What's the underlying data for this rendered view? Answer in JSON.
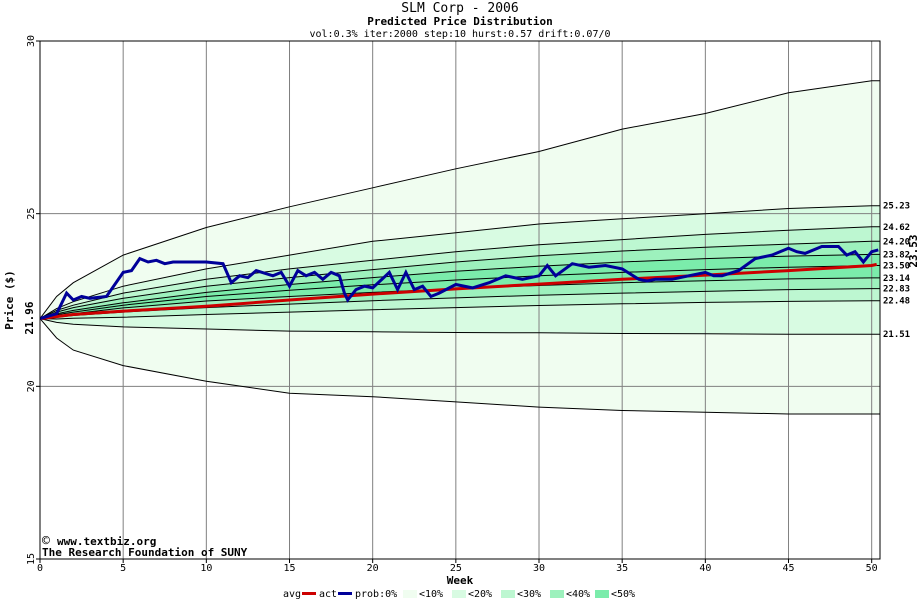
{
  "chart_data": {
    "type": "area",
    "title": "SLM Corp - 2006",
    "subtitle": "Predicted Price Distribution",
    "params": "vol:0.3% iter:2000 step:10 hurst:0.57 drift:0.07/0",
    "xlabel": "Week",
    "ylabel": "Price ($)",
    "xlim": [
      0,
      50.5
    ],
    "ylim": [
      15,
      30
    ],
    "x_ticks": [
      "0",
      "5",
      "10",
      "15",
      "20",
      "25",
      "30",
      "35",
      "40",
      "45",
      "50"
    ],
    "y_ticks": [
      "15",
      "20",
      "25",
      "30"
    ],
    "start_price_label": "21.96",
    "end_price_label": "23.53",
    "right_labels": [
      "25.23",
      "24.62",
      "24.20",
      "23.82",
      "23.50",
      "23.14",
      "22.83",
      "22.48",
      "21.51"
    ],
    "bands": {
      "weeks": [
        0,
        1,
        2,
        5,
        10,
        15,
        20,
        25,
        30,
        35,
        40,
        45,
        50,
        50.5
      ],
      "outer_upper": [
        21.96,
        22.6,
        23.0,
        23.8,
        24.6,
        25.2,
        25.75,
        26.3,
        26.8,
        27.45,
        27.9,
        28.5,
        28.85,
        28.85
      ],
      "outer_lower": [
        21.96,
        21.4,
        21.05,
        20.6,
        20.15,
        19.8,
        19.7,
        19.55,
        19.4,
        19.3,
        19.25,
        19.2,
        19.2,
        19.2
      ],
      "p10_upper": [
        21.96,
        22.25,
        22.45,
        22.9,
        23.4,
        23.8,
        24.2,
        24.45,
        24.7,
        24.85,
        25.0,
        25.15,
        25.23,
        25.23
      ],
      "p10_lower": [
        21.96,
        21.85,
        21.8,
        21.72,
        21.66,
        21.6,
        21.58,
        21.56,
        21.55,
        21.53,
        21.52,
        21.51,
        21.51,
        21.51
      ],
      "p20_upper": [
        21.96,
        22.2,
        22.35,
        22.7,
        23.1,
        23.4,
        23.65,
        23.9,
        24.1,
        24.25,
        24.4,
        24.52,
        24.62,
        24.62
      ],
      "p20_lower": [
        21.96,
        21.95,
        21.97,
        22.0,
        22.08,
        22.15,
        22.22,
        22.28,
        22.34,
        22.39,
        22.43,
        22.46,
        22.48,
        22.48
      ],
      "p30_upper": [
        21.96,
        22.15,
        22.28,
        22.55,
        22.9,
        23.15,
        23.38,
        23.6,
        23.78,
        23.92,
        24.03,
        24.12,
        24.2,
        24.2
      ],
      "p30_lower": [
        21.96,
        22.0,
        22.05,
        22.15,
        22.28,
        22.38,
        22.48,
        22.56,
        22.64,
        22.7,
        22.75,
        22.8,
        22.83,
        22.83
      ],
      "p40_upper": [
        21.96,
        22.1,
        22.2,
        22.42,
        22.72,
        22.95,
        23.15,
        23.33,
        23.48,
        23.6,
        23.7,
        23.77,
        23.82,
        23.82
      ],
      "p40_lower": [
        21.96,
        22.03,
        22.1,
        22.27,
        22.47,
        22.6,
        22.72,
        22.83,
        22.92,
        23.0,
        23.06,
        23.11,
        23.14,
        23.14
      ],
      "p50_center": [
        21.96,
        22.07,
        22.15,
        22.35,
        22.6,
        22.78,
        22.94,
        23.08,
        23.2,
        23.3,
        23.38,
        23.45,
        23.5,
        23.5
      ]
    },
    "avg_line": {
      "x": [
        0,
        2,
        5,
        10,
        15,
        20,
        25,
        30,
        35,
        40,
        45,
        50,
        50.3
      ],
      "y": [
        21.96,
        22.08,
        22.18,
        22.32,
        22.5,
        22.67,
        22.82,
        22.96,
        23.1,
        23.22,
        23.35,
        23.5,
        23.53
      ]
    },
    "actual_line": {
      "x": [
        0,
        1,
        1.6,
        2,
        2.5,
        3,
        4,
        5,
        5.5,
        6,
        6.5,
        7,
        7.5,
        8,
        9,
        10,
        11,
        11.5,
        12,
        12.5,
        13,
        14,
        14.5,
        15,
        15.5,
        16,
        16.5,
        17,
        17.5,
        18,
        18.3,
        18.5,
        19,
        19.5,
        20,
        21,
        21.5,
        22,
        22.5,
        23,
        23.5,
        24,
        25,
        26,
        27,
        28,
        29,
        30,
        30.5,
        31,
        32,
        33,
        34,
        35,
        36,
        36.5,
        37,
        38,
        39,
        40,
        40.5,
        41,
        42,
        43,
        44,
        45,
        45.5,
        46,
        47,
        48,
        48.5,
        49,
        49.5,
        50,
        50.4
      ],
      "y": [
        21.96,
        22.1,
        22.7,
        22.5,
        22.6,
        22.55,
        22.6,
        23.3,
        23.35,
        23.7,
        23.6,
        23.65,
        23.55,
        23.6,
        23.6,
        23.6,
        23.55,
        23.0,
        23.2,
        23.15,
        23.35,
        23.2,
        23.3,
        22.9,
        23.35,
        23.2,
        23.3,
        23.1,
        23.3,
        23.2,
        22.7,
        22.5,
        22.8,
        22.9,
        22.85,
        23.3,
        22.8,
        23.3,
        22.8,
        22.9,
        22.6,
        22.7,
        22.95,
        22.85,
        23.0,
        23.2,
        23.1,
        23.2,
        23.5,
        23.2,
        23.55,
        23.45,
        23.5,
        23.4,
        23.1,
        23.05,
        23.1,
        23.1,
        23.2,
        23.3,
        23.2,
        23.2,
        23.35,
        23.7,
        23.8,
        24.0,
        23.9,
        23.85,
        24.05,
        24.05,
        23.8,
        23.9,
        23.6,
        23.9,
        23.95
      ]
    },
    "credits": [
      "www.textbiz.org",
      "The Research Foundation of SUNY"
    ],
    "copyright_symbol": "©",
    "legend": {
      "avg": "avg",
      "act": "act",
      "prob": "prob:0%",
      "items": [
        "<10%",
        "<20%",
        "<30%",
        "<40%",
        "<50%"
      ]
    },
    "colors": {
      "outer": "#f0fdf0",
      "p10": "#d8fbe2",
      "p20": "#bdf7d1",
      "p30": "#9df1bd",
      "p40": "#7becab",
      "p50": "#5ee8a0",
      "avg": "#cc0000",
      "actual": "#000099",
      "grid": "#808080",
      "end_label": "#cc0000"
    },
    "grid": true
  }
}
